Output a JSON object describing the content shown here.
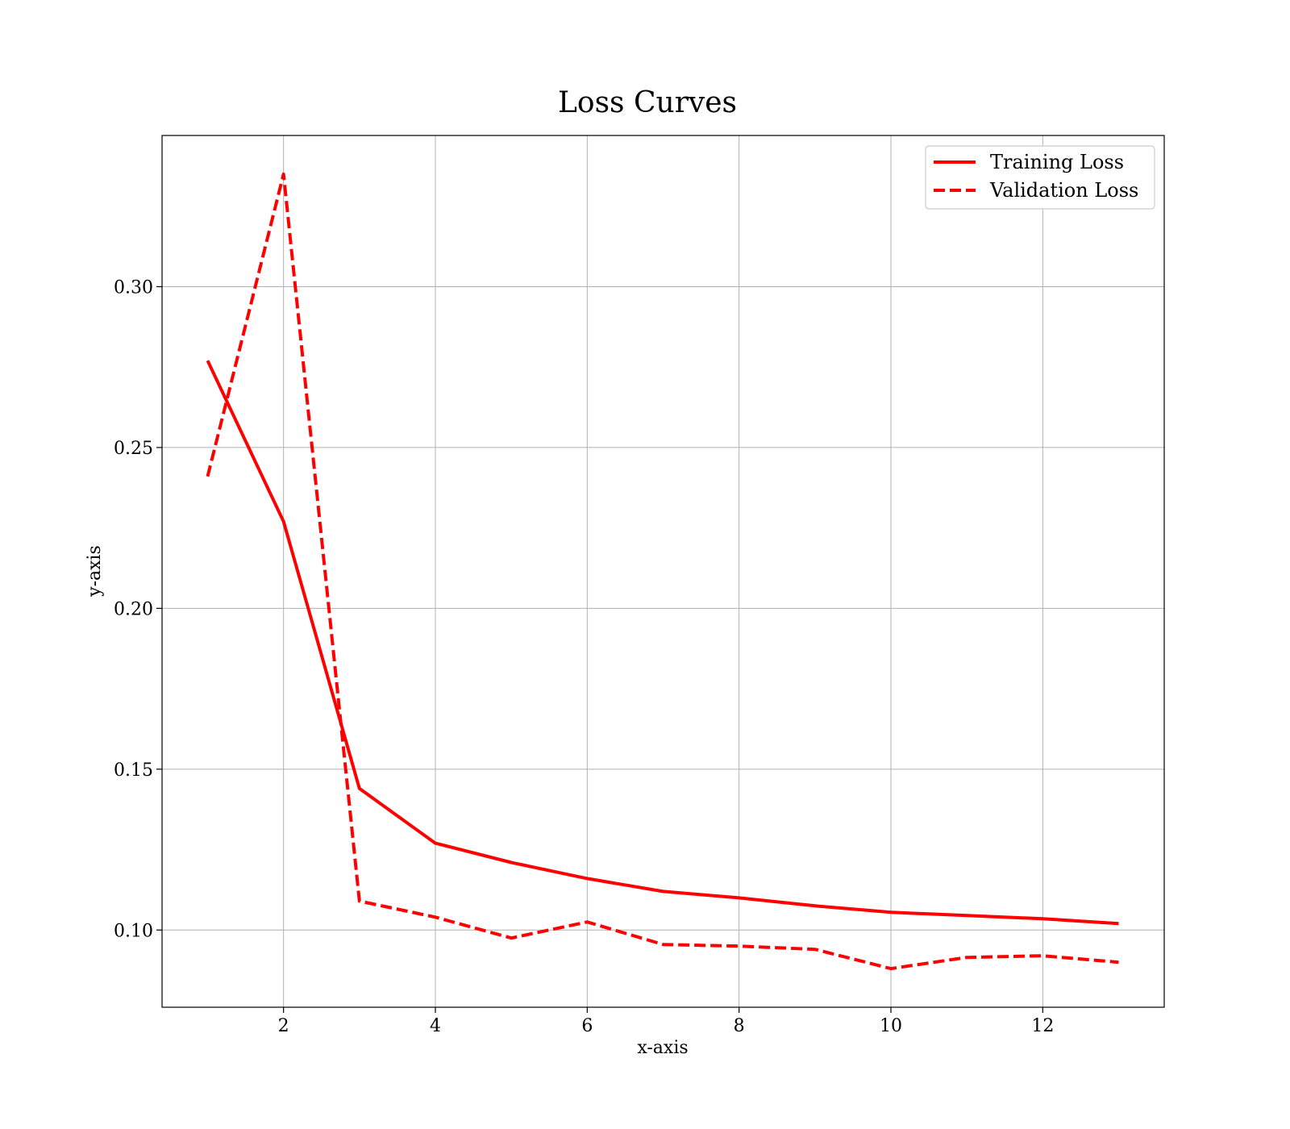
{
  "chart_data": {
    "type": "line",
    "title": "Loss Curves",
    "xlabel": "x-axis",
    "ylabel": "y-axis",
    "xlim": [
      0.4,
      13.6
    ],
    "ylim": [
      0.076,
      0.347
    ],
    "xticks": [
      2,
      4,
      6,
      8,
      10,
      12
    ],
    "xtick_labels": [
      "2",
      "4",
      "6",
      "8",
      "10",
      "12"
    ],
    "yticks": [
      0.1,
      0.15,
      0.2,
      0.25,
      0.3
    ],
    "ytick_labels": [
      "0.10",
      "0.15",
      "0.20",
      "0.25",
      "0.30"
    ],
    "grid": true,
    "legend_position": "top-right",
    "x": [
      1,
      2,
      3,
      4,
      5,
      6,
      7,
      8,
      9,
      10,
      11,
      12,
      13
    ],
    "series": [
      {
        "name": "Training Loss",
        "style": "solid",
        "color": "#ff0000",
        "values": [
          0.277,
          0.227,
          0.144,
          0.127,
          0.121,
          0.116,
          0.112,
          0.11,
          0.1075,
          0.1055,
          0.1045,
          0.1035,
          0.102
        ]
      },
      {
        "name": "Validation Loss",
        "style": "dashed",
        "color": "#ff0000",
        "values": [
          0.241,
          0.335,
          0.109,
          0.104,
          0.0975,
          0.1025,
          0.0955,
          0.095,
          0.094,
          0.088,
          0.0915,
          0.092,
          0.09
        ]
      }
    ]
  }
}
